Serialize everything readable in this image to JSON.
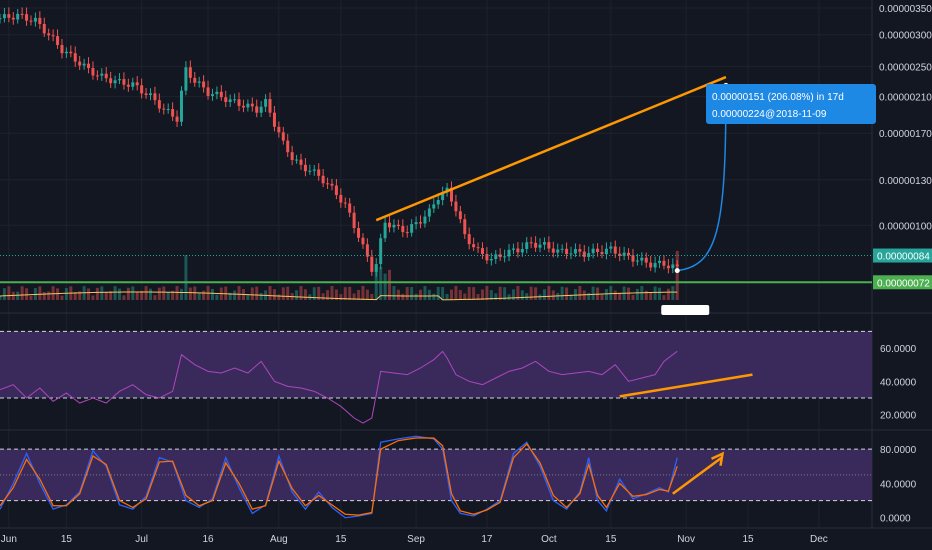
{
  "chart_data": [
    {
      "type": "candlestick",
      "pane": "price",
      "ylim": [
        6.5e-07,
        3.5e-06
      ],
      "y_ticks": [
        "0.00000350",
        "0.00000300",
        "0.00000250",
        "0.00000210",
        "0.00000170",
        "0.00000130",
        "0.00000100"
      ],
      "last_price_label": "0.00000084",
      "support_label": "0.00000072",
      "support_level": 7.2e-07,
      "current_level": 8.4e-07,
      "series": [
        {
          "name": "price",
          "points": [
            [
              0,
              3.3e-06
            ],
            [
              4,
              3.35e-06
            ],
            [
              8,
              3.25e-06
            ],
            [
              11,
              3e-06
            ],
            [
              14,
              2.75e-06
            ],
            [
              17,
              2.6e-06
            ],
            [
              20,
              2.45e-06
            ],
            [
              23,
              2.35e-06
            ],
            [
              27,
              2.28e-06
            ],
            [
              30,
              2.25e-06
            ],
            [
              34,
              2.1e-06
            ],
            [
              37,
              1.95e-06
            ],
            [
              40,
              1.85e-06
            ],
            [
              42,
              2.45e-06
            ],
            [
              44,
              2.3e-06
            ],
            [
              47,
              2.15e-06
            ],
            [
              50,
              2.1e-06
            ],
            [
              52,
              2.05e-06
            ],
            [
              55,
              2e-06
            ],
            [
              58,
              1.95e-06
            ],
            [
              60,
              2.03e-06
            ],
            [
              62,
              1.8e-06
            ],
            [
              64,
              1.6e-06
            ],
            [
              66,
              1.48e-06
            ],
            [
              68,
              1.4e-06
            ],
            [
              70,
              1.38e-06
            ],
            [
              73,
              1.3e-06
            ],
            [
              76,
              1.2e-06
            ],
            [
              78,
              1.12e-06
            ],
            [
              80,
              1e-06
            ],
            [
              82,
              8.8e-07
            ],
            [
              84,
              7.8e-07
            ],
            [
              85,
              8e-07
            ],
            [
              87,
              1.02e-06
            ],
            [
              90,
              9.8e-07
            ],
            [
              92,
              9.7e-07
            ],
            [
              95,
              1.03e-06
            ],
            [
              97,
              1.08e-06
            ],
            [
              99,
              1.18e-06
            ],
            [
              101,
              1.22e-06
            ],
            [
              103,
              1.1e-06
            ],
            [
              105,
              9.4e-07
            ],
            [
              108,
              8.6e-07
            ],
            [
              111,
              8.2e-07
            ],
            [
              114,
              8.5e-07
            ],
            [
              117,
              8.7e-07
            ],
            [
              120,
              9e-07
            ],
            [
              123,
              8.9e-07
            ],
            [
              126,
              8.6e-07
            ],
            [
              129,
              8.6e-07
            ],
            [
              132,
              8.5e-07
            ],
            [
              135,
              8.6e-07
            ],
            [
              138,
              8.7e-07
            ],
            [
              141,
              8.4e-07
            ],
            [
              144,
              8.2e-07
            ],
            [
              147,
              8e-07
            ],
            [
              150,
              8e-07
            ],
            [
              153,
              7.8e-07
            ]
          ]
        }
      ]
    },
    {
      "type": "line",
      "pane": "rsi",
      "y_ticks": [
        "60.0000",
        "40.0000",
        "20.0000"
      ],
      "ylim": [
        12,
        78
      ],
      "bands": [
        30,
        70
      ],
      "series": [
        {
          "name": "rsi",
          "points": [
            [
              0,
              35
            ],
            [
              3,
              38
            ],
            [
              6,
              30
            ],
            [
              9,
              36
            ],
            [
              12,
              28
            ],
            [
              15,
              33
            ],
            [
              18,
              27
            ],
            [
              21,
              30
            ],
            [
              24,
              27
            ],
            [
              27,
              34
            ],
            [
              30,
              38
            ],
            [
              33,
              32
            ],
            [
              36,
              30
            ],
            [
              39,
              34
            ],
            [
              41,
              56
            ],
            [
              44,
              50
            ],
            [
              47,
              46
            ],
            [
              50,
              45
            ],
            [
              53,
              48
            ],
            [
              56,
              45
            ],
            [
              59,
              52
            ],
            [
              62,
              40
            ],
            [
              65,
              37
            ],
            [
              68,
              36
            ],
            [
              71,
              34
            ],
            [
              74,
              30
            ],
            [
              77,
              25
            ],
            [
              80,
              18
            ],
            [
              82,
              15
            ],
            [
              84,
              18
            ],
            [
              86,
              46
            ],
            [
              89,
              45
            ],
            [
              92,
              44
            ],
            [
              95,
              48
            ],
            [
              98,
              53
            ],
            [
              100,
              58
            ],
            [
              101,
              54
            ],
            [
              103,
              44
            ],
            [
              106,
              40
            ],
            [
              109,
              38
            ],
            [
              112,
              42
            ],
            [
              115,
              46
            ],
            [
              118,
              48
            ],
            [
              121,
              52
            ],
            [
              124,
              46
            ],
            [
              127,
              44
            ],
            [
              130,
              45
            ],
            [
              133,
              46
            ],
            [
              136,
              44
            ],
            [
              139,
              50
            ],
            [
              142,
              40
            ],
            [
              145,
              42
            ],
            [
              148,
              44
            ],
            [
              150,
              52
            ],
            [
              153,
              58
            ]
          ]
        }
      ]
    },
    {
      "type": "line",
      "pane": "stoch",
      "y_ticks": [
        "80.0000",
        "40.0000",
        "0.0000"
      ],
      "ylim": [
        -5,
        100
      ],
      "bands": [
        20,
        80
      ],
      "series": [
        {
          "name": "k",
          "color": "#2962ff",
          "points": [
            [
              0,
              10
            ],
            [
              3,
              40
            ],
            [
              6,
              75
            ],
            [
              9,
              40
            ],
            [
              12,
              10
            ],
            [
              15,
              15
            ],
            [
              18,
              30
            ],
            [
              21,
              78
            ],
            [
              24,
              60
            ],
            [
              27,
              15
            ],
            [
              30,
              10
            ],
            [
              33,
              25
            ],
            [
              36,
              70
            ],
            [
              39,
              65
            ],
            [
              42,
              20
            ],
            [
              45,
              12
            ],
            [
              48,
              22
            ],
            [
              51,
              70
            ],
            [
              54,
              35
            ],
            [
              57,
              5
            ],
            [
              60,
              15
            ],
            [
              63,
              72
            ],
            [
              66,
              30
            ],
            [
              69,
              10
            ],
            [
              72,
              30
            ],
            [
              75,
              12
            ],
            [
              78,
              0
            ],
            [
              81,
              2
            ],
            [
              84,
              5
            ],
            [
              86,
              88
            ],
            [
              90,
              92
            ],
            [
              94,
              95
            ],
            [
              98,
              92
            ],
            [
              100,
              80
            ],
            [
              102,
              20
            ],
            [
              104,
              5
            ],
            [
              107,
              2
            ],
            [
              110,
              10
            ],
            [
              113,
              20
            ],
            [
              116,
              75
            ],
            [
              119,
              88
            ],
            [
              122,
              60
            ],
            [
              125,
              20
            ],
            [
              128,
              10
            ],
            [
              131,
              30
            ],
            [
              133,
              70
            ],
            [
              135,
              20
            ],
            [
              137,
              8
            ],
            [
              140,
              45
            ],
            [
              143,
              22
            ],
            [
              146,
              28
            ],
            [
              149,
              35
            ],
            [
              151,
              30
            ],
            [
              153,
              70
            ]
          ]
        },
        {
          "name": "d",
          "color": "#ff6d00",
          "points": [
            [
              0,
              14
            ],
            [
              3,
              35
            ],
            [
              6,
              68
            ],
            [
              9,
              45
            ],
            [
              12,
              14
            ],
            [
              15,
              14
            ],
            [
              18,
              28
            ],
            [
              21,
              72
            ],
            [
              24,
              62
            ],
            [
              27,
              20
            ],
            [
              30,
              12
            ],
            [
              33,
              22
            ],
            [
              36,
              65
            ],
            [
              39,
              66
            ],
            [
              42,
              26
            ],
            [
              45,
              14
            ],
            [
              48,
              20
            ],
            [
              51,
              64
            ],
            [
              54,
              40
            ],
            [
              57,
              10
            ],
            [
              60,
              14
            ],
            [
              63,
              66
            ],
            [
              66,
              34
            ],
            [
              69,
              14
            ],
            [
              72,
              26
            ],
            [
              75,
              15
            ],
            [
              78,
              4
            ],
            [
              81,
              3
            ],
            [
              84,
              6
            ],
            [
              86,
              80
            ],
            [
              90,
              90
            ],
            [
              94,
              93
            ],
            [
              98,
              93
            ],
            [
              100,
              84
            ],
            [
              102,
              28
            ],
            [
              104,
              8
            ],
            [
              107,
              4
            ],
            [
              110,
              9
            ],
            [
              113,
              18
            ],
            [
              116,
              70
            ],
            [
              119,
              86
            ],
            [
              122,
              64
            ],
            [
              125,
              26
            ],
            [
              128,
              12
            ],
            [
              131,
              28
            ],
            [
              133,
              62
            ],
            [
              135,
              26
            ],
            [
              137,
              12
            ],
            [
              140,
              40
            ],
            [
              143,
              25
            ],
            [
              146,
              27
            ],
            [
              149,
              33
            ],
            [
              151,
              31
            ],
            [
              153,
              60
            ]
          ]
        }
      ]
    }
  ],
  "x_axis": {
    "labels": [
      {
        "text": "Jun",
        "day": 2
      },
      {
        "text": "15",
        "day": 15
      },
      {
        "text": "Jul",
        "day": 32
      },
      {
        "text": "16",
        "day": 47
      },
      {
        "text": "Aug",
        "day": 63
      },
      {
        "text": "15",
        "day": 77
      },
      {
        "text": "Sep",
        "day": 94
      },
      {
        "text": "17",
        "day": 110
      },
      {
        "text": "Oct",
        "day": 124
      },
      {
        "text": "15",
        "day": 138
      },
      {
        "text": "Nov",
        "day": 155
      },
      {
        "text": "15",
        "day": 169
      },
      {
        "text": "Dec",
        "day": 185
      }
    ]
  },
  "projection": {
    "label": "0.00000151 (206.08%) in 17d",
    "sublabel": "0.00000224",
    "date": "2018-11-09",
    "target": 2.24e-06,
    "target_day": 164
  },
  "colors": {
    "up": "#26a69a",
    "down": "#ef5350",
    "trendline": "#ff9800",
    "support": "#4caf50",
    "rsi": "#ab47bc",
    "band_fill": "#3a2a5c",
    "projection": "#1e88e5",
    "text": "#d1d4dc"
  }
}
